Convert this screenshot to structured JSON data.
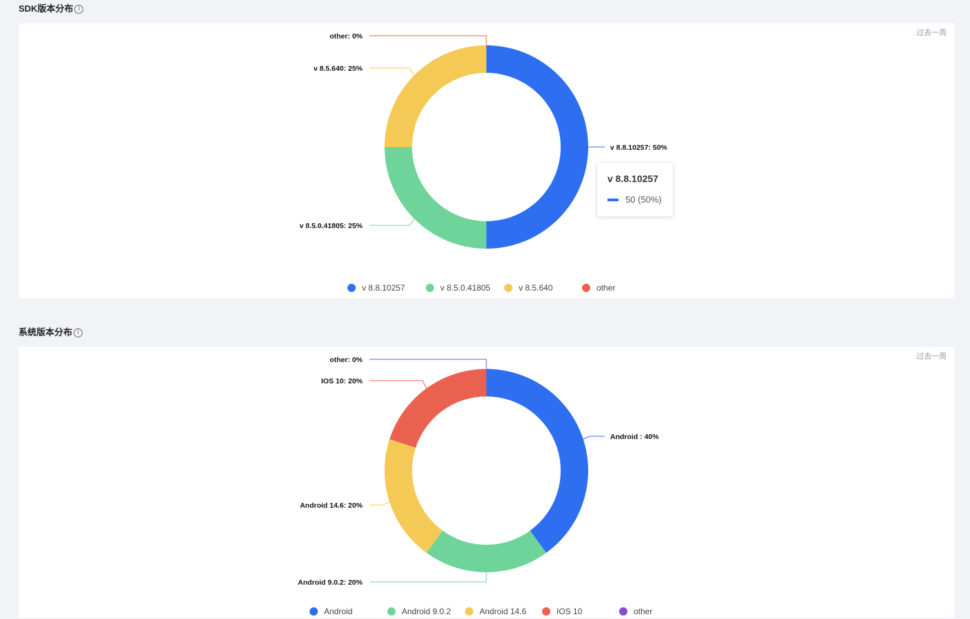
{
  "sections": [
    {
      "title": "SDK版本分布",
      "range_label": "过去一周"
    },
    {
      "title": "系统版本分布",
      "range_label": "过去一周"
    }
  ],
  "tooltip": {
    "title": "v 8.8.10257",
    "value_text": "50 (50%)",
    "color": "#2e6ff2"
  },
  "icons": {
    "info": "info-circle-icon"
  },
  "chart_data": [
    {
      "type": "pie",
      "style": "donut",
      "title": "",
      "legend_position": "bottom",
      "slices": [
        {
          "name": "v 8.8.10257",
          "value": 50,
          "percent": 50,
          "label": "v 8.8.10257: 50%",
          "color": "#2e6ff2"
        },
        {
          "name": "v 8.5.0.41805",
          "value": 25,
          "percent": 25,
          "label": "v 8.5.0.41805: 25%",
          "color": "#6fd49a"
        },
        {
          "name": "v 8.5.640",
          "value": 25,
          "percent": 25,
          "label": "v 8.5.640: 25%",
          "color": "#f5c955"
        },
        {
          "name": "other",
          "value": 0,
          "percent": 0,
          "label": "other: 0%",
          "color": "#ea6150"
        }
      ]
    },
    {
      "type": "pie",
      "style": "donut",
      "title": "",
      "legend_position": "bottom",
      "slices": [
        {
          "name": "Android",
          "value": 40,
          "percent": 40,
          "label": "Android : 40%",
          "color": "#2e6ff2"
        },
        {
          "name": "Android 9.0.2",
          "value": 20,
          "percent": 20,
          "label": "Android 9.0.2: 20%",
          "color": "#6fd49a"
        },
        {
          "name": "Android 14.6",
          "value": 20,
          "percent": 20,
          "label": "Android 14.6: 20%",
          "color": "#f5c955"
        },
        {
          "name": "IOS 10",
          "value": 20,
          "percent": 20,
          "label": "IOS 10: 20%",
          "color": "#ea6150"
        },
        {
          "name": "other",
          "value": 0,
          "percent": 0,
          "label": "other: 0%",
          "color": "#8a4ad6"
        }
      ]
    }
  ]
}
